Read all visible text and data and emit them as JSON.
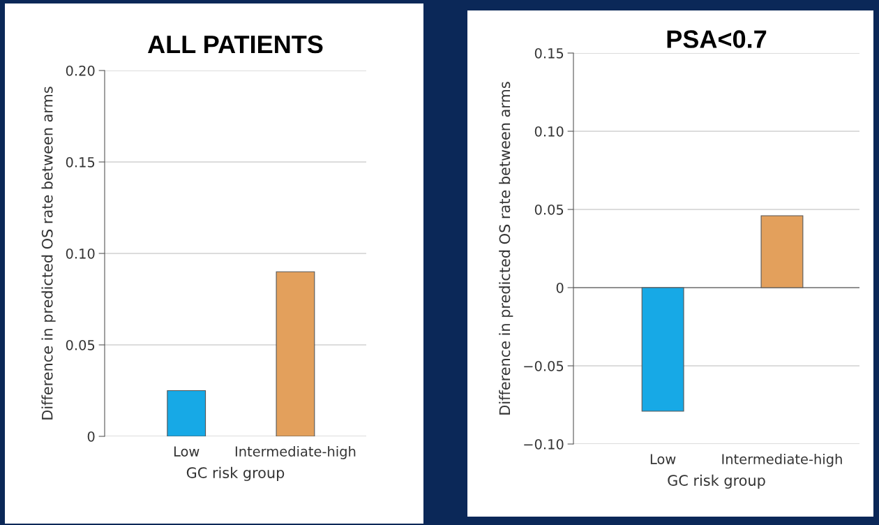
{
  "chart_data": [
    {
      "type": "bar",
      "title": "ALL PATIENTS",
      "xlabel": "GC risk group",
      "ylabel": "Difference in predicted OS rate between arms",
      "categories": [
        "Low",
        "Intermediate-high"
      ],
      "values": [
        0.025,
        0.09
      ],
      "colors": [
        "#17a9e6",
        "#e3a05c"
      ],
      "ylim": [
        0,
        0.2
      ],
      "yticks": [
        {
          "value": 0,
          "label": "0"
        },
        {
          "value": 0.05,
          "label": "0.05"
        },
        {
          "value": 0.1,
          "label": "0.10"
        },
        {
          "value": 0.15,
          "label": "0.15"
        },
        {
          "value": 0.2,
          "label": "0.20"
        }
      ],
      "grid": "y"
    },
    {
      "type": "bar",
      "title": "PSA<0.7",
      "xlabel": "GC risk group",
      "ylabel": "Difference in predicted OS rate between arms",
      "categories": [
        "Low",
        "Intermediate-high"
      ],
      "values": [
        -0.079,
        0.046
      ],
      "colors": [
        "#17a9e6",
        "#e3a05c"
      ],
      "ylim": [
        -0.1,
        0.15
      ],
      "yticks": [
        {
          "value": -0.1,
          "label": "−0.10"
        },
        {
          "value": -0.05,
          "label": "−0.05"
        },
        {
          "value": 0,
          "label": "0"
        },
        {
          "value": 0.05,
          "label": "0.05"
        },
        {
          "value": 0.1,
          "label": "0.10"
        },
        {
          "value": 0.15,
          "label": "0.15"
        }
      ],
      "grid": "y",
      "ref_lines": [
        {
          "axis": "y",
          "value": 0,
          "color": "#777777"
        }
      ]
    }
  ]
}
